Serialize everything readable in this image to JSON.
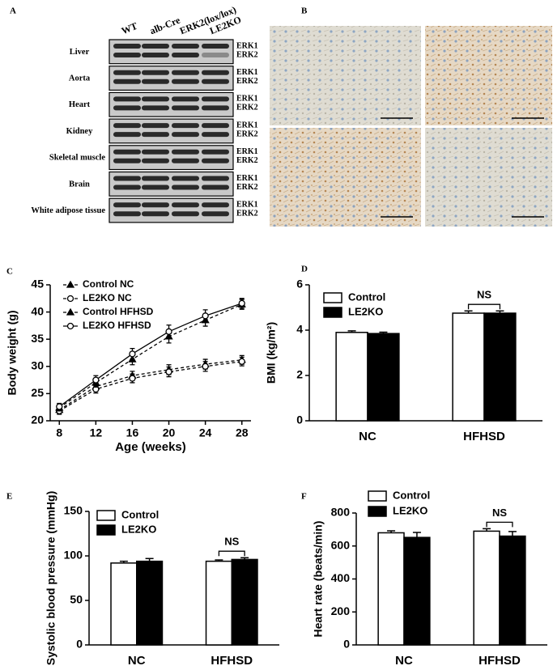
{
  "blot": {
    "panel": "A",
    "lanes": [
      "WT",
      "alb-Cre",
      "ERK2(lox/lox)",
      "LE2KO"
    ],
    "tissues": [
      "Liver",
      "Aorta",
      "Heart",
      "Kidney",
      "Skeletal muscle",
      "Brain",
      "White adipose tissue"
    ],
    "bands": [
      "ERK1",
      "ERK2"
    ]
  },
  "histology": {
    "panel": "B"
  },
  "chart_data": [
    {
      "panel": "C",
      "type": "line",
      "x_label": "Age (weeks)",
      "y_label": "Body weight (g)",
      "x": [
        8,
        12,
        16,
        20,
        24,
        28
      ],
      "xlim": [
        7,
        29
      ],
      "xticks": [
        8,
        12,
        16,
        20,
        24,
        28
      ],
      "ylim": [
        20,
        45
      ],
      "yticks": [
        20,
        25,
        30,
        35,
        40,
        45
      ],
      "series": [
        {
          "name": "Control NC",
          "color": "#000000",
          "marker": "triangle",
          "dashed": true,
          "values": [
            22,
            26.3,
            28.3,
            29.4,
            30.4,
            31.2
          ],
          "errors": [
            0.6,
            0.7,
            0.8,
            0.9,
            0.9,
            0.8
          ]
        },
        {
          "name": "LE2KO NC",
          "color": "#000000",
          "marker": "circle",
          "dashed": true,
          "values": [
            21.8,
            25.8,
            27.8,
            29.0,
            30.0,
            30.9
          ],
          "errors": [
            0.6,
            0.7,
            0.8,
            0.9,
            0.9,
            0.8
          ]
        },
        {
          "name": "Control HFHSD",
          "color": "#000000",
          "marker": "triangle",
          "dashed": true,
          "values": [
            22.4,
            27.0,
            31.3,
            35.5,
            38.5,
            41.4
          ],
          "errors": [
            0.6,
            0.8,
            1.0,
            1.2,
            1.1,
            0.9
          ]
        },
        {
          "name": "LE2KO HFHSD",
          "color": "#000000",
          "marker": "circle",
          "dashed": false,
          "values": [
            22.6,
            27.5,
            32.3,
            36.4,
            39.3,
            41.6
          ],
          "errors": [
            0.6,
            0.8,
            1.0,
            1.2,
            1.1,
            0.9
          ]
        }
      ]
    },
    {
      "panel": "D",
      "type": "bar",
      "y_label": "BMI (kg/m²)",
      "categories": [
        "NC",
        "HFHSD"
      ],
      "ylim": [
        0,
        6
      ],
      "yticks": [
        0,
        2,
        4,
        6
      ],
      "annotation": "NS",
      "series": [
        {
          "name": "Control",
          "color": "#ffffff",
          "values": [
            3.9,
            4.75
          ],
          "errors": [
            0.07,
            0.1
          ]
        },
        {
          "name": "LE2KO",
          "color": "#000000",
          "values": [
            3.85,
            4.75
          ],
          "errors": [
            0.06,
            0.1
          ]
        }
      ]
    },
    {
      "panel": "E",
      "type": "bar",
      "y_label": "Systolic blood pressure (mmHg)",
      "categories": [
        "NC",
        "HFHSD"
      ],
      "ylim": [
        0,
        150
      ],
      "yticks": [
        0,
        50,
        100,
        150
      ],
      "annotation": "NS",
      "series": [
        {
          "name": "Control",
          "color": "#ffffff",
          "values": [
            92,
            94
          ],
          "errors": [
            2,
            1.5
          ]
        },
        {
          "name": "LE2KO",
          "color": "#000000",
          "values": [
            94,
            96
          ],
          "errors": [
            3,
            2
          ]
        }
      ]
    },
    {
      "panel": "F",
      "type": "bar",
      "y_label": "Heart rate (beats/min)",
      "categories": [
        "NC",
        "HFHSD"
      ],
      "ylim": [
        0,
        800
      ],
      "yticks": [
        0,
        200,
        400,
        600,
        800
      ],
      "annotation": "NS",
      "series": [
        {
          "name": "Control",
          "color": "#ffffff",
          "values": [
            680,
            690
          ],
          "errors": [
            12,
            15
          ]
        },
        {
          "name": "LE2KO",
          "color": "#000000",
          "values": [
            652,
            660
          ],
          "errors": [
            30,
            28
          ]
        }
      ]
    }
  ]
}
